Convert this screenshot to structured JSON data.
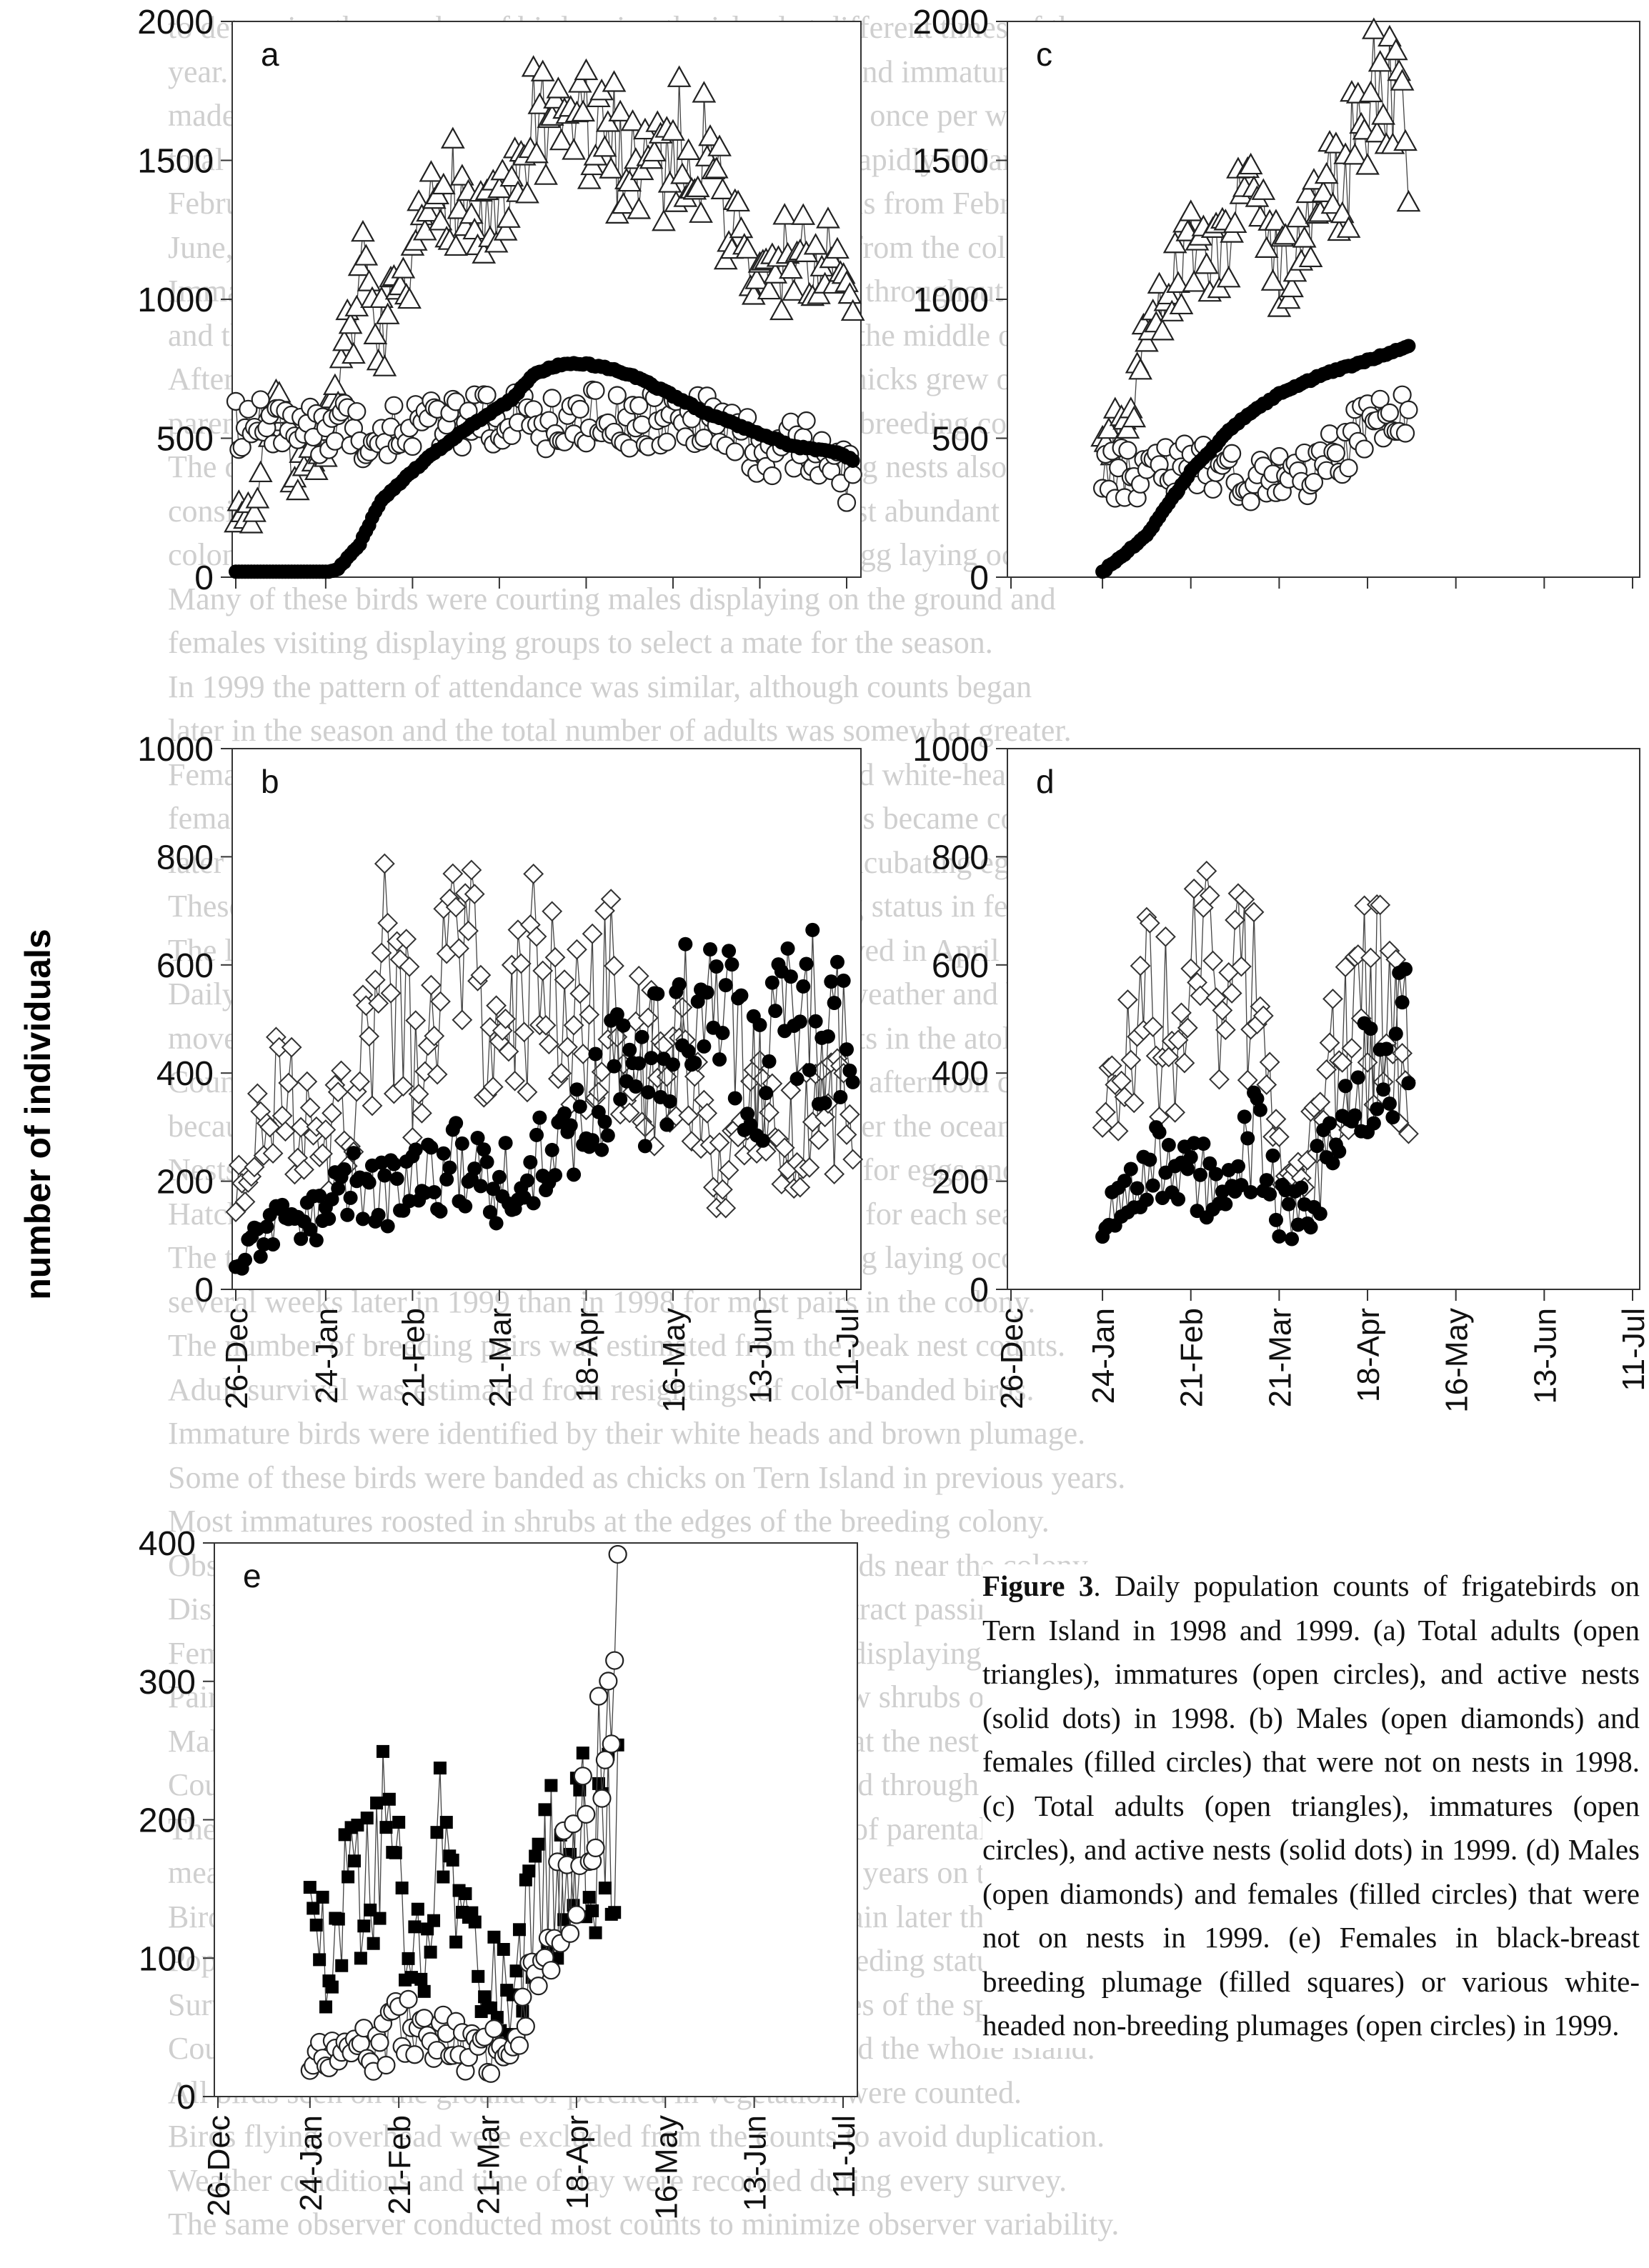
{
  "figure": {
    "ylabel": "number of individuals",
    "caption_label": "Figure 3",
    "caption_text": ".  Daily population counts of frigatebirds on Tern Island in 1998 and 1999. (a) Total adults (open triangles), immatures (open circles), and active nests (solid dots) in 1998. (b) Males (open diamonds) and females (filled circles) that were not on nests in 1998. (c) Total adults (open triangles), immatures (open circles), and active nests (solid dots) in 1999. (d) Males (open diamonds) and females (filled circles) that were not on nests in 1999. (e) Females in black-breast breeding plumage (filled squares) or various white-headed non-breeding plumages (open circles) in 1999.",
    "background_text": [
      "to determine the number of birds using the island at different times of the",
      "year. Population counts of adult males, adult females, and immatures were",
      "made daily and the number of active nests was counted once per week. The",
      "total number of adults (males plus females) increased rapidly in January and",
      "February, fluctuated between 1000 and 1900 individuals from February through",
      "June, and declined in July as breeding adults departed from the colony.",
      "Immatures were present in relatively constant numbers throughout the season",
      "and the number of active nests increased steadily until the middle of April.",
      "After hatching, nest attendance by adults declined as chicks grew older and",
      "parents spent more time foraging at sea away from the breeding colony.",
      "The counts of males and females that were not attending nests also varied",
      "considerably from day to day, and these birds were most abundant in the",
      "colony during the courtship period before the peak of egg laying occurred.",
      "Many of these birds were courting males displaying on the ground and",
      "females visiting displaying groups to select a mate for the season.",
      "In 1999 the pattern of attendance was similar, although counts began",
      "later in the season and the total number of adults was somewhat greater.",
      "Females in black-breast breeding plumage outnumbered white-headed",
      "females early in the season, while white-headed females became common",
      "later in the season when most breeding females were incubating eggs.",
      "These data suggest that plumage may indicate breeding status in females.",
      "The largest numbers of non-breeding birds were observed in April and May.",
      "Daily fluctuations in counts were probably caused by weather and by the",
      "movements of birds between Tern Island and other islets in the atoll.",
      "Counts made in the morning were generally lower than afternoon counts",
      "because many birds left the island at dawn to forage over the ocean.",
      "Nests were marked with numbered stakes and checked for eggs and chicks.",
      "Hatching success and fledging success were calculated for each season.",
      "The timing of breeding differed between years, with egg laying occurring",
      "several weeks later in 1999 than in 1998 for most pairs in the colony.",
      "The number of breeding pairs was estimated from the peak nest counts.",
      "Adult survival was estimated from resightings of color-banded birds.",
      "Immature birds were identified by their white heads and brown plumage.",
      "Some of these birds were banded as chicks on Tern Island in previous years.",
      "Most immatures roosted in shrubs at the edges of the breeding colony.",
      "Observations of displaying males were made from blinds near the colony.",
      "Displaying males inflated their red gular pouches to attract passing females.",
      "Females selected mates after circling above groups of displaying males.",
      "Pair formation was followed by nest building in the low shrubs on the island.",
      "Males collected nest material while females remained at the nest site.",
      "Courtship behaviour decreased as the season progressed through the spring.",
      "The length of the breeding season and the long period of parental care",
      "mean that successful pairs cannot breed in consecutive years on the atoll.",
      "Birds that failed early may have attempted to breed again later that season.",
      "Population counts therefore include birds of mixed breeding status.",
      "Survey methods followed those used in previous studies of the species.",
      "Counts were conducted by walking a fixed route around the whole island.",
      "All birds seen on the ground or perched in vegetation were counted.",
      "Birds flying overhead were excluded from the counts to avoid duplication.",
      "Weather conditions and time of day were recorded during every survey.",
      "The same observer conducted most counts to minimize observer variability."
    ]
  },
  "chart_data": [
    {
      "type": "scatter",
      "panel": "a",
      "xlim": [
        "26-Dec",
        "11-Jul"
      ],
      "ylim": [
        0,
        2000
      ],
      "yticks": [
        0,
        500,
        1000,
        1500,
        2000
      ],
      "series": [
        {
          "marker": "open-triangle",
          "x": [
            "1997-12-26",
            "1998-01-01",
            "1998-01-07",
            "1998-01-14",
            "1998-01-21",
            "1998-01-28",
            "1998-02-04",
            "1998-02-11",
            "1998-02-18",
            "1998-02-25",
            "1998-03-04",
            "1998-03-11",
            "1998-03-18",
            "1998-03-25",
            "1998-04-01",
            "1998-04-08",
            "1998-04-15",
            "1998-04-22",
            "1998-04-29",
            "1998-05-06",
            "1998-05-13",
            "1998-05-20",
            "1998-05-27",
            "1998-06-03",
            "1998-06-10",
            "1998-06-17",
            "1998-06-24",
            "1998-07-01",
            "1998-07-08",
            "1998-07-13"
          ],
          "y": [
            250,
            230,
            650,
            380,
            450,
            620,
            1100,
            900,
            950,
            1250,
            1450,
            1300,
            1250,
            1280,
            1650,
            1500,
            1680,
            1550,
            1550,
            1520,
            1500,
            1580,
            1520,
            1300,
            1080,
            1050,
            1200,
            1120,
            1130,
            880
          ]
        },
        {
          "marker": "open-circle",
          "x": [
            "1997-12-26",
            "1998-01-05",
            "1998-01-15",
            "1998-01-25",
            "1998-02-05",
            "1998-02-15",
            "1998-02-25",
            "1998-03-07",
            "1998-03-17",
            "1998-03-27",
            "1998-04-06",
            "1998-04-16",
            "1998-04-26",
            "1998-05-06",
            "1998-05-16",
            "1998-05-26",
            "1998-06-05",
            "1998-06-15",
            "1998-06-25",
            "1998-07-05",
            "1998-07-13"
          ],
          "y": [
            540,
            560,
            520,
            540,
            520,
            530,
            550,
            560,
            570,
            580,
            560,
            580,
            570,
            560,
            560,
            580,
            550,
            400,
            480,
            450,
            340
          ]
        },
        {
          "marker": "filled-dot",
          "x": [
            "1997-12-26",
            "1998-01-07",
            "1998-01-21",
            "1998-01-28",
            "1998-02-04",
            "1998-02-11",
            "1998-02-18",
            "1998-02-25",
            "1998-03-04",
            "1998-03-11",
            "1998-03-18",
            "1998-03-25",
            "1998-04-01",
            "1998-04-08",
            "1998-04-15",
            "1998-04-22",
            "1998-04-29",
            "1998-05-06",
            "1998-05-13",
            "1998-05-20",
            "1998-05-27",
            "1998-06-03",
            "1998-06-10",
            "1998-06-17",
            "1998-06-24",
            "1998-07-01",
            "1998-07-08",
            "1998-07-13"
          ],
          "y": [
            0,
            0,
            0,
            30,
            120,
            280,
            350,
            420,
            480,
            540,
            590,
            640,
            730,
            760,
            770,
            760,
            740,
            710,
            670,
            630,
            590,
            560,
            530,
            500,
            470,
            460,
            450,
            420
          ]
        }
      ]
    },
    {
      "type": "scatter",
      "panel": "c",
      "xlim": [
        "26-Dec",
        "11-Jul"
      ],
      "ylim": [
        0,
        2000
      ],
      "yticks": [
        0,
        500,
        1000,
        1500,
        2000
      ],
      "series": [
        {
          "marker": "open-triangle",
          "x": [
            "1999-01-24",
            "1999-01-31",
            "1999-02-07",
            "1999-02-14",
            "1999-02-21",
            "1999-02-28",
            "1999-03-07",
            "1999-03-14",
            "1999-03-21",
            "1999-03-28",
            "1999-04-04",
            "1999-04-11",
            "1999-04-18",
            "1999-04-25",
            "1999-05-01"
          ],
          "y": [
            450,
            600,
            800,
            1000,
            1200,
            1150,
            1250,
            1400,
            1050,
            1300,
            1400,
            1450,
            1700,
            1800,
            1600
          ]
        },
        {
          "marker": "open-circle",
          "x": [
            "1999-01-24",
            "1999-02-07",
            "1999-02-21",
            "1999-03-07",
            "1999-03-21",
            "1999-04-04",
            "1999-04-18",
            "1999-05-01"
          ],
          "y": [
            380,
            380,
            390,
            350,
            360,
            400,
            560,
            560
          ]
        },
        {
          "marker": "filled-dot",
          "x": [
            "1999-01-24",
            "1999-02-07",
            "1999-02-21",
            "1999-03-07",
            "1999-03-21",
            "1999-04-04",
            "1999-04-18",
            "1999-05-01"
          ],
          "y": [
            20,
            150,
            380,
            550,
            660,
            730,
            780,
            830
          ]
        }
      ]
    },
    {
      "type": "scatter",
      "panel": "b",
      "xticks": [
        "26-Dec",
        "24-Jan",
        "21-Feb",
        "21-Mar",
        "18-Apr",
        "16-May",
        "13-Jun",
        "11-Jul"
      ],
      "ylim": [
        0,
        1000
      ],
      "yticks": [
        0,
        200,
        400,
        600,
        800,
        1000
      ],
      "series": [
        {
          "marker": "open-diamond",
          "x": [
            "1997-12-26",
            "1998-01-07",
            "1998-01-19",
            "1998-01-31",
            "1998-02-12",
            "1998-02-24",
            "1998-03-08",
            "1998-03-20",
            "1998-04-01",
            "1998-04-13",
            "1998-04-25",
            "1998-05-07",
            "1998-05-19",
            "1998-05-31",
            "1998-06-12",
            "1998-06-24",
            "1998-07-06",
            "1998-07-13"
          ],
          "y": [
            170,
            380,
            270,
            300,
            650,
            350,
            700,
            430,
            580,
            450,
            560,
            400,
            440,
            200,
            320,
            280,
            330,
            300
          ]
        },
        {
          "marker": "filled-dot",
          "x": [
            "1997-12-26",
            "1998-01-07",
            "1998-01-19",
            "1998-01-31",
            "1998-02-12",
            "1998-02-24",
            "1998-03-08",
            "1998-03-20",
            "1998-04-01",
            "1998-04-13",
            "1998-04-25",
            "1998-05-07",
            "1998-05-19",
            "1998-05-31",
            "1998-06-12",
            "1998-06-24",
            "1998-07-06",
            "1998-07-13"
          ],
          "y": [
            40,
            130,
            120,
            190,
            170,
            200,
            230,
            190,
            240,
            270,
            380,
            390,
            480,
            540,
            380,
            550,
            480,
            430
          ]
        }
      ]
    },
    {
      "type": "scatter",
      "panel": "d",
      "xticks": [
        "26-Dec",
        "24-Jan",
        "21-Feb",
        "21-Mar",
        "18-Apr",
        "16-May",
        "13-Jun",
        "11-Jul"
      ],
      "ylim": [
        0,
        1000
      ],
      "yticks": [
        0,
        200,
        400,
        600,
        800,
        1000
      ],
      "series": [
        {
          "marker": "open-diamond",
          "x": [
            "1999-01-24",
            "1999-02-01",
            "1999-02-09",
            "1999-02-17",
            "1999-02-25",
            "1999-03-05",
            "1999-03-13",
            "1999-03-21",
            "1999-03-29",
            "1999-04-06",
            "1999-04-14",
            "1999-04-22",
            "1999-05-01"
          ],
          "y": [
            300,
            450,
            520,
            480,
            600,
            460,
            650,
            300,
            230,
            400,
            500,
            550,
            420
          ]
        },
        {
          "marker": "filled-dot",
          "x": [
            "1999-01-24",
            "1999-02-01",
            "1999-02-09",
            "1999-02-17",
            "1999-02-25",
            "1999-03-05",
            "1999-03-13",
            "1999-03-21",
            "1999-03-29",
            "1999-04-06",
            "1999-04-14",
            "1999-04-22",
            "1999-05-01"
          ],
          "y": [
            120,
            180,
            250,
            230,
            200,
            220,
            280,
            150,
            140,
            260,
            340,
            480,
            450
          ]
        }
      ]
    },
    {
      "type": "scatter",
      "panel": "e",
      "xticks": [
        "26-Dec",
        "24-Jan",
        "21-Feb",
        "21-Mar",
        "18-Apr",
        "16-May",
        "13-Jun",
        "11-Jul"
      ],
      "ylim": [
        0,
        400
      ],
      "yticks": [
        0,
        100,
        200,
        300,
        400
      ],
      "series": [
        {
          "marker": "filled-square",
          "x": [
            "1999-01-24",
            "1999-01-31",
            "1999-02-07",
            "1999-02-14",
            "1999-02-21",
            "1999-02-28",
            "1999-03-07",
            "1999-03-14",
            "1999-03-21",
            "1999-03-28",
            "1999-04-04",
            "1999-04-11",
            "1999-04-18",
            "1999-04-25",
            "1999-05-01"
          ],
          "y": [
            110,
            100,
            160,
            190,
            150,
            120,
            200,
            110,
            90,
            70,
            140,
            170,
            160,
            220,
            180
          ]
        },
        {
          "marker": "open-circle",
          "x": [
            "1999-01-24",
            "1999-01-31",
            "1999-02-07",
            "1999-02-14",
            "1999-02-21",
            "1999-02-28",
            "1999-03-07",
            "1999-03-14",
            "1999-03-21",
            "1999-03-28",
            "1999-04-04",
            "1999-04-11",
            "1999-04-18",
            "1999-04-25",
            "1999-05-01"
          ],
          "y": [
            25,
            30,
            35,
            30,
            55,
            40,
            45,
            30,
            30,
            40,
            90,
            130,
            180,
            240,
            300
          ]
        }
      ]
    }
  ]
}
